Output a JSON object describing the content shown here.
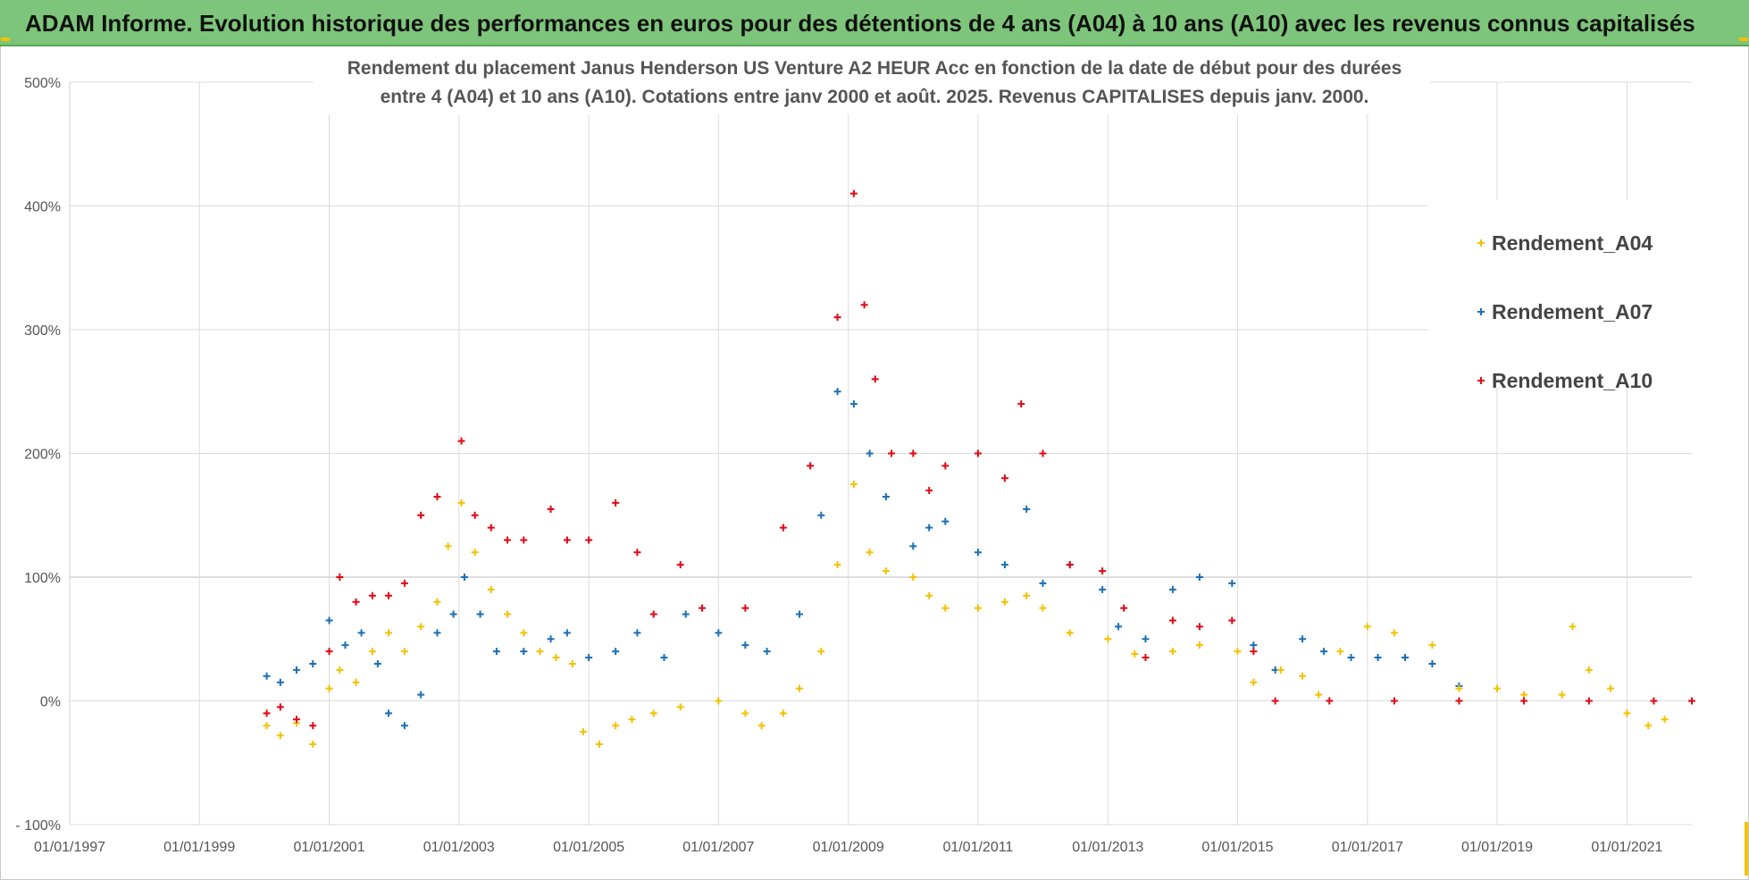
{
  "banner": {
    "title": "ADAM Informe. Evolution historique des performances en euros pour des détentions de 4 ans (A04) à 10 ans (A10) avec les revenus connus capitalisés"
  },
  "chart_data": {
    "type": "scatter",
    "title_lines": [
      "Rendement du placement Janus Henderson US Venture A2 HEUR Acc en fonction de la date de début pour des durées",
      "entre 4 (A04) et 10 ans (A10). Cotations entre janv 2000 et août. 2025. Revenus CAPITALISES depuis janv. 2000."
    ],
    "xlabel": "",
    "ylabel": "",
    "x_range": [
      "1997-01-01",
      "2022-01-01"
    ],
    "x_ticks": [
      "01/01/1997",
      "01/01/1999",
      "01/01/2001",
      "01/01/2003",
      "01/01/2005",
      "01/01/2007",
      "01/01/2009",
      "01/01/2011",
      "01/01/2013",
      "01/01/2015",
      "01/01/2017",
      "01/01/2019",
      "01/01/2021"
    ],
    "ylim": [
      -100,
      500
    ],
    "y_ticks": [
      {
        "value": 500,
        "label": "500%"
      },
      {
        "value": 400,
        "label": "400%"
      },
      {
        "value": 300,
        "label": "300%"
      },
      {
        "value": 200,
        "label": "200%"
      },
      {
        "value": 100,
        "label": "100%"
      },
      {
        "value": 0,
        "label": "0%"
      },
      {
        "value": -100,
        "label": "- 100%"
      }
    ],
    "grid": true,
    "legend_position": "top-right",
    "marker": "+",
    "series": [
      {
        "name": "Rendement_A04",
        "color": "#f5c000",
        "points": [
          [
            "2000-01-15",
            -20
          ],
          [
            "2000-04-01",
            -28
          ],
          [
            "2000-07-01",
            -18
          ],
          [
            "2000-10-01",
            -35
          ],
          [
            "2001-01-01",
            10
          ],
          [
            "2001-03-01",
            25
          ],
          [
            "2001-06-01",
            15
          ],
          [
            "2001-09-01",
            40
          ],
          [
            "2001-12-01",
            55
          ],
          [
            "2002-03-01",
            40
          ],
          [
            "2002-06-01",
            60
          ],
          [
            "2002-09-01",
            80
          ],
          [
            "2002-11-01",
            125
          ],
          [
            "2003-01-15",
            160
          ],
          [
            "2003-04-01",
            120
          ],
          [
            "2003-07-01",
            90
          ],
          [
            "2003-10-01",
            70
          ],
          [
            "2004-01-01",
            55
          ],
          [
            "2004-04-01",
            40
          ],
          [
            "2004-07-01",
            35
          ],
          [
            "2004-10-01",
            30
          ],
          [
            "2004-12-01",
            -25
          ],
          [
            "2005-03-01",
            -35
          ],
          [
            "2005-06-01",
            -20
          ],
          [
            "2005-09-01",
            -15
          ],
          [
            "2006-01-01",
            -10
          ],
          [
            "2006-06-01",
            -5
          ],
          [
            "2007-01-01",
            0
          ],
          [
            "2007-06-01",
            -10
          ],
          [
            "2007-09-01",
            -20
          ],
          [
            "2008-01-01",
            -10
          ],
          [
            "2008-04-01",
            10
          ],
          [
            "2008-08-01",
            40
          ],
          [
            "2008-11-01",
            110
          ],
          [
            "2009-02-01",
            175
          ],
          [
            "2009-05-01",
            120
          ],
          [
            "2009-08-01",
            105
          ],
          [
            "2010-01-01",
            100
          ],
          [
            "2010-04-01",
            85
          ],
          [
            "2010-07-01",
            75
          ],
          [
            "2011-01-01",
            75
          ],
          [
            "2011-06-01",
            80
          ],
          [
            "2011-10-01",
            85
          ],
          [
            "2012-01-01",
            75
          ],
          [
            "2012-06-01",
            55
          ],
          [
            "2013-01-01",
            50
          ],
          [
            "2013-06-01",
            38
          ],
          [
            "2014-01-01",
            40
          ],
          [
            "2014-06-01",
            45
          ],
          [
            "2015-01-01",
            40
          ],
          [
            "2015-04-01",
            15
          ],
          [
            "2015-09-01",
            25
          ],
          [
            "2016-01-01",
            20
          ],
          [
            "2016-04-01",
            5
          ],
          [
            "2016-08-01",
            40
          ],
          [
            "2017-01-01",
            60
          ],
          [
            "2017-06-01",
            55
          ],
          [
            "2018-01-01",
            45
          ],
          [
            "2018-06-01",
            10
          ],
          [
            "2019-01-01",
            10
          ],
          [
            "2019-06-01",
            5
          ],
          [
            "2020-01-01",
            5
          ],
          [
            "2020-03-01",
            60
          ],
          [
            "2020-06-01",
            25
          ],
          [
            "2020-10-01",
            10
          ],
          [
            "2021-01-01",
            -10
          ],
          [
            "2021-05-01",
            -20
          ],
          [
            "2021-08-01",
            -15
          ]
        ]
      },
      {
        "name": "Rendement_A07",
        "color": "#1a6fb5",
        "points": [
          [
            "2000-01-15",
            20
          ],
          [
            "2000-04-01",
            15
          ],
          [
            "2000-07-01",
            25
          ],
          [
            "2000-10-01",
            30
          ],
          [
            "2001-01-01",
            65
          ],
          [
            "2001-04-01",
            45
          ],
          [
            "2001-07-01",
            55
          ],
          [
            "2001-10-01",
            30
          ],
          [
            "2001-12-01",
            -10
          ],
          [
            "2002-03-01",
            -20
          ],
          [
            "2002-06-01",
            5
          ],
          [
            "2002-09-01",
            55
          ],
          [
            "2002-12-01",
            70
          ],
          [
            "2003-02-01",
            100
          ],
          [
            "2003-05-01",
            70
          ],
          [
            "2003-08-01",
            40
          ],
          [
            "2004-01-01",
            40
          ],
          [
            "2004-06-01",
            50
          ],
          [
            "2004-09-01",
            55
          ],
          [
            "2005-01-01",
            35
          ],
          [
            "2005-06-01",
            40
          ],
          [
            "2005-10-01",
            55
          ],
          [
            "2006-03-01",
            35
          ],
          [
            "2006-07-01",
            70
          ],
          [
            "2007-01-01",
            55
          ],
          [
            "2007-06-01",
            45
          ],
          [
            "2007-10-01",
            40
          ],
          [
            "2008-04-01",
            70
          ],
          [
            "2008-08-01",
            150
          ],
          [
            "2008-11-01",
            250
          ],
          [
            "2009-02-01",
            240
          ],
          [
            "2009-05-01",
            200
          ],
          [
            "2009-08-01",
            165
          ],
          [
            "2010-01-01",
            125
          ],
          [
            "2010-04-01",
            140
          ],
          [
            "2010-07-01",
            145
          ],
          [
            "2011-01-01",
            120
          ],
          [
            "2011-06-01",
            110
          ],
          [
            "2011-10-01",
            155
          ],
          [
            "2012-01-01",
            95
          ],
          [
            "2012-06-01",
            110
          ],
          [
            "2012-12-01",
            90
          ],
          [
            "2013-03-01",
            60
          ],
          [
            "2013-08-01",
            50
          ],
          [
            "2014-01-01",
            90
          ],
          [
            "2014-06-01",
            100
          ],
          [
            "2014-12-01",
            95
          ],
          [
            "2015-04-01",
            45
          ],
          [
            "2015-08-01",
            25
          ],
          [
            "2016-01-01",
            50
          ],
          [
            "2016-05-01",
            40
          ],
          [
            "2016-10-01",
            35
          ],
          [
            "2017-03-01",
            35
          ],
          [
            "2017-08-01",
            35
          ],
          [
            "2018-01-01",
            30
          ],
          [
            "2018-06-01",
            12
          ]
        ]
      },
      {
        "name": "Rendement_A10",
        "color": "#e30613",
        "points": [
          [
            "2000-01-15",
            -10
          ],
          [
            "2000-04-01",
            -5
          ],
          [
            "2000-07-01",
            -15
          ],
          [
            "2000-10-01",
            -20
          ],
          [
            "2001-01-01",
            40
          ],
          [
            "2001-03-01",
            100
          ],
          [
            "2001-06-01",
            80
          ],
          [
            "2001-09-01",
            85
          ],
          [
            "2001-12-01",
            85
          ],
          [
            "2002-03-01",
            95
          ],
          [
            "2002-06-01",
            150
          ],
          [
            "2002-09-01",
            165
          ],
          [
            "2003-01-15",
            210
          ],
          [
            "2003-04-01",
            150
          ],
          [
            "2003-07-01",
            140
          ],
          [
            "2003-10-01",
            130
          ],
          [
            "2004-01-01",
            130
          ],
          [
            "2004-06-01",
            155
          ],
          [
            "2004-09-01",
            130
          ],
          [
            "2005-01-01",
            130
          ],
          [
            "2005-06-01",
            160
          ],
          [
            "2005-10-01",
            120
          ],
          [
            "2006-01-01",
            70
          ],
          [
            "2006-06-01",
            110
          ],
          [
            "2006-10-01",
            75
          ],
          [
            "2007-06-01",
            75
          ],
          [
            "2008-01-01",
            140
          ],
          [
            "2008-06-01",
            190
          ],
          [
            "2008-11-01",
            310
          ],
          [
            "2009-02-01",
            410
          ],
          [
            "2009-04-01",
            320
          ],
          [
            "2009-06-01",
            260
          ],
          [
            "2009-09-01",
            200
          ],
          [
            "2010-01-01",
            200
          ],
          [
            "2010-04-01",
            170
          ],
          [
            "2010-07-01",
            190
          ],
          [
            "2011-01-01",
            200
          ],
          [
            "2011-06-01",
            180
          ],
          [
            "2011-09-01",
            240
          ],
          [
            "2012-01-01",
            200
          ],
          [
            "2012-06-01",
            110
          ],
          [
            "2012-12-01",
            105
          ],
          [
            "2013-04-01",
            75
          ],
          [
            "2013-08-01",
            35
          ],
          [
            "2014-01-01",
            65
          ],
          [
            "2014-06-01",
            60
          ],
          [
            "2014-12-01",
            65
          ],
          [
            "2015-04-01",
            40
          ],
          [
            "2015-08-01",
            0
          ],
          [
            "2016-06-01",
            0
          ],
          [
            "2017-06-01",
            0
          ],
          [
            "2018-06-01",
            0
          ],
          [
            "2019-06-01",
            0
          ],
          [
            "2020-06-01",
            0
          ],
          [
            "2021-06-01",
            0
          ],
          [
            "2022-01-01",
            0
          ]
        ]
      }
    ]
  }
}
